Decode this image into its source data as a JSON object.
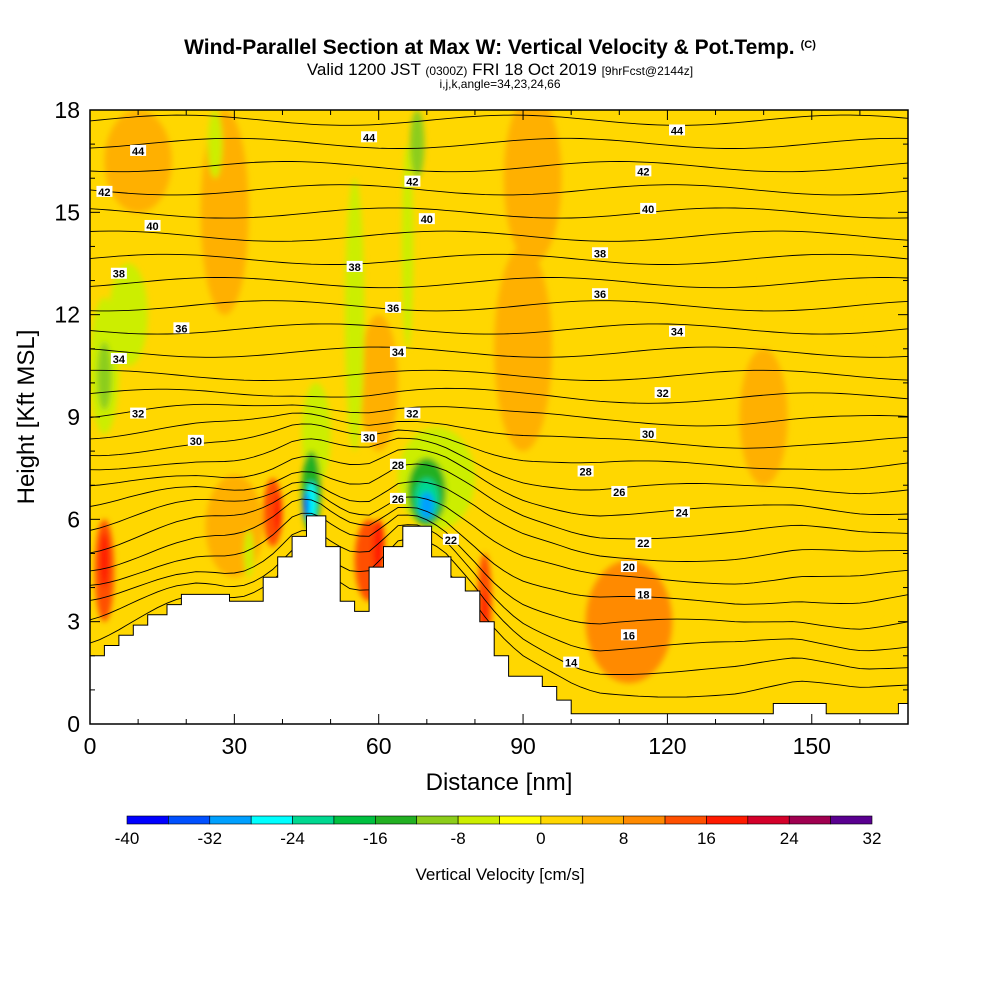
{
  "title": {
    "main": "Wind-Parallel Section at Max W: Vertical Velocity & Pot.Temp.",
    "copyright": "(C)",
    "valid_prefix": "Valid 1200 JST",
    "valid_utc": "(0300Z)",
    "valid_date": "FRI 18 Oct 2019",
    "forecast": "[9hrFcst@2144z]",
    "indices": "i,j,k,angle=34,23,24,66"
  },
  "chart_data": {
    "type": "heatmap",
    "xlabel": "Distance [nm]",
    "ylabel": "Height [Kft MSL]",
    "xlim": [
      0,
      170
    ],
    "ylim": [
      0,
      18
    ],
    "x_ticks": [
      "0",
      "30",
      "60",
      "90",
      "120",
      "150"
    ],
    "x_tick_values": [
      0,
      30,
      60,
      90,
      120,
      150
    ],
    "y_ticks": [
      "0",
      "3",
      "6",
      "9",
      "12",
      "15",
      "18"
    ],
    "y_tick_values": [
      0,
      3,
      6,
      9,
      12,
      15,
      18
    ],
    "terrain": [
      [
        0,
        2
      ],
      [
        3,
        2
      ],
      [
        3,
        2.3
      ],
      [
        6,
        2.3
      ],
      [
        6,
        2.6
      ],
      [
        9,
        2.6
      ],
      [
        9,
        2.9
      ],
      [
        12,
        2.9
      ],
      [
        12,
        3.2
      ],
      [
        16,
        3.2
      ],
      [
        16,
        3.5
      ],
      [
        19,
        3.5
      ],
      [
        19,
        3.8
      ],
      [
        29,
        3.8
      ],
      [
        29,
        3.6
      ],
      [
        36,
        3.6
      ],
      [
        36,
        4.3
      ],
      [
        39,
        4.3
      ],
      [
        39,
        4.9
      ],
      [
        42,
        4.9
      ],
      [
        42,
        5.5
      ],
      [
        45,
        5.5
      ],
      [
        45,
        6.1
      ],
      [
        49,
        6.1
      ],
      [
        49,
        5.2
      ],
      [
        52,
        5.2
      ],
      [
        52,
        3.6
      ],
      [
        55,
        3.6
      ],
      [
        55,
        3.3
      ],
      [
        58,
        3.3
      ],
      [
        58,
        4.6
      ],
      [
        61,
        4.6
      ],
      [
        61,
        5.2
      ],
      [
        65,
        5.2
      ],
      [
        65,
        5.8
      ],
      [
        71,
        5.8
      ],
      [
        71,
        4.9
      ],
      [
        75,
        4.9
      ],
      [
        75,
        4.3
      ],
      [
        78,
        4.3
      ],
      [
        78,
        3.9
      ],
      [
        81,
        3.9
      ],
      [
        81,
        3.0
      ],
      [
        84,
        3.0
      ],
      [
        84,
        2.0
      ],
      [
        87,
        2.0
      ],
      [
        87,
        1.4
      ],
      [
        94,
        1.4
      ],
      [
        94,
        1.1
      ],
      [
        97,
        1.1
      ],
      [
        97,
        0.7
      ],
      [
        100,
        0.7
      ],
      [
        100,
        0.3
      ],
      [
        142,
        0.3
      ],
      [
        142,
        0.6
      ],
      [
        153,
        0.6
      ],
      [
        153,
        0.3
      ],
      [
        168,
        0.3
      ],
      [
        168,
        0.6
      ],
      [
        170,
        0.6
      ]
    ],
    "contour_labels": [
      {
        "text": "44",
        "x": 10,
        "y": 16.8
      },
      {
        "text": "44",
        "x": 58,
        "y": 17.2
      },
      {
        "text": "44",
        "x": 122,
        "y": 17.4
      },
      {
        "text": "42",
        "x": 3,
        "y": 15.6
      },
      {
        "text": "42",
        "x": 67,
        "y": 15.9
      },
      {
        "text": "42",
        "x": 115,
        "y": 16.2
      },
      {
        "text": "40",
        "x": 13,
        "y": 14.6
      },
      {
        "text": "40",
        "x": 70,
        "y": 14.8
      },
      {
        "text": "40",
        "x": 116,
        "y": 15.1
      },
      {
        "text": "38",
        "x": 6,
        "y": 13.2
      },
      {
        "text": "38",
        "x": 55,
        "y": 13.4
      },
      {
        "text": "38",
        "x": 106,
        "y": 13.8
      },
      {
        "text": "36",
        "x": 19,
        "y": 11.6
      },
      {
        "text": "36",
        "x": 63,
        "y": 12.2
      },
      {
        "text": "36",
        "x": 106,
        "y": 12.6
      },
      {
        "text": "34",
        "x": 6,
        "y": 10.7
      },
      {
        "text": "34",
        "x": 64,
        "y": 10.9
      },
      {
        "text": "34",
        "x": 122,
        "y": 11.5
      },
      {
        "text": "32",
        "x": 10,
        "y": 9.1
      },
      {
        "text": "32",
        "x": 67,
        "y": 9.1
      },
      {
        "text": "32",
        "x": 119,
        "y": 9.7
      },
      {
        "text": "30",
        "x": 22,
        "y": 8.3
      },
      {
        "text": "30",
        "x": 58,
        "y": 8.4
      },
      {
        "text": "30",
        "x": 116,
        "y": 8.5
      },
      {
        "text": "28",
        "x": 64,
        "y": 7.6
      },
      {
        "text": "28",
        "x": 103,
        "y": 7.4
      },
      {
        "text": "26",
        "x": 64,
        "y": 6.6
      },
      {
        "text": "26",
        "x": 110,
        "y": 6.8
      },
      {
        "text": "24",
        "x": 123,
        "y": 6.2
      },
      {
        "text": "22",
        "x": 75,
        "y": 5.4
      },
      {
        "text": "22",
        "x": 115,
        "y": 5.3
      },
      {
        "text": "20",
        "x": 112,
        "y": 4.6
      },
      {
        "text": "18",
        "x": 115,
        "y": 3.8
      },
      {
        "text": "16",
        "x": 112,
        "y": 2.6
      },
      {
        "text": "14",
        "x": 100,
        "y": 1.8
      }
    ],
    "colorbar": {
      "label": "Vertical Velocity [cm/s]",
      "tick_labels": [
        "-40",
        "-32",
        "-24",
        "-16",
        "-8",
        "0",
        "8",
        "16",
        "24",
        "32"
      ],
      "tick_values": [
        -40,
        -32,
        -24,
        -16,
        -8,
        0,
        8,
        16,
        24,
        32
      ],
      "bins": [
        {
          "from": -40,
          "to": -36,
          "color": "#0000ff"
        },
        {
          "from": -36,
          "to": -32,
          "color": "#0050ff"
        },
        {
          "from": -32,
          "to": -28,
          "color": "#00a0ff"
        },
        {
          "from": -28,
          "to": -24,
          "color": "#00ffff"
        },
        {
          "from": -24,
          "to": -20,
          "color": "#00d890"
        },
        {
          "from": -20,
          "to": -16,
          "color": "#00c040"
        },
        {
          "from": -16,
          "to": -12,
          "color": "#22b022"
        },
        {
          "from": -12,
          "to": -8,
          "color": "#8ccd1a"
        },
        {
          "from": -8,
          "to": -4,
          "color": "#ccee00"
        },
        {
          "from": -4,
          "to": 0,
          "color": "#ffff00"
        },
        {
          "from": 0,
          "to": 4,
          "color": "#ffd700"
        },
        {
          "from": 4,
          "to": 8,
          "color": "#ffb000"
        },
        {
          "from": 8,
          "to": 12,
          "color": "#ff8a00"
        },
        {
          "from": 12,
          "to": 16,
          "color": "#ff5000"
        },
        {
          "from": 16,
          "to": 20,
          "color": "#ff1a00"
        },
        {
          "from": 20,
          "to": 24,
          "color": "#d4002a"
        },
        {
          "from": 24,
          "to": 28,
          "color": "#a00050"
        },
        {
          "from": 28,
          "to": 32,
          "color": "#5a0090"
        }
      ]
    },
    "velocity_regions": [
      {
        "x": 10,
        "y": 16.5,
        "rx": 7,
        "ry": 1.5,
        "value": 6
      },
      {
        "x": 28,
        "y": 15,
        "rx": 5,
        "ry": 3,
        "value": 4
      },
      {
        "x": 92,
        "y": 16,
        "rx": 6,
        "ry": 2.5,
        "value": 5
      },
      {
        "x": 150,
        "y": 13,
        "rx": 10,
        "ry": 3,
        "value": 3
      },
      {
        "x": 140,
        "y": 9,
        "rx": 5,
        "ry": 2,
        "value": 6
      },
      {
        "x": 90,
        "y": 11,
        "rx": 6,
        "ry": 3,
        "value": 4
      },
      {
        "x": 112,
        "y": 3,
        "rx": 9,
        "ry": 1.8,
        "value": 8
      },
      {
        "x": 160,
        "y": 7,
        "rx": 10,
        "ry": 4,
        "value": 3
      },
      {
        "x": 60,
        "y": 10,
        "rx": 4,
        "ry": 2,
        "value": 4
      },
      {
        "x": 30,
        "y": 5.8,
        "rx": 6,
        "ry": 1.5,
        "value": 6
      },
      {
        "x": 3,
        "y": 4.5,
        "rx": 2,
        "ry": 1.5,
        "value": 12
      },
      {
        "x": 3,
        "y": 4.8,
        "rx": 1,
        "ry": 0.8,
        "value": 16
      },
      {
        "x": 38,
        "y": 6.2,
        "rx": 2,
        "ry": 1,
        "value": 12
      },
      {
        "x": 39,
        "y": 6.2,
        "rx": 0.8,
        "ry": 0.6,
        "value": 16
      },
      {
        "x": 58,
        "y": 4.8,
        "rx": 3,
        "ry": 1.2,
        "value": 12
      },
      {
        "x": 60,
        "y": 5.2,
        "rx": 1.2,
        "ry": 0.8,
        "value": 18
      },
      {
        "x": 82,
        "y": 3.5,
        "rx": 1.5,
        "ry": 1.5,
        "value": 14
      },
      {
        "x": 82,
        "y": 3.3,
        "rx": 0.6,
        "ry": 0.6,
        "value": 18
      },
      {
        "x": 3,
        "y": 10.5,
        "rx": 3,
        "ry": 2,
        "value": -8
      },
      {
        "x": 3,
        "y": 10.2,
        "rx": 1.5,
        "ry": 1,
        "value": -12
      },
      {
        "x": 8,
        "y": 12,
        "rx": 4,
        "ry": 1.5,
        "value": -6
      },
      {
        "x": 26,
        "y": 17,
        "rx": 1.5,
        "ry": 1,
        "value": -6
      },
      {
        "x": 55,
        "y": 12,
        "rx": 2,
        "ry": 4,
        "value": -6
      },
      {
        "x": 68,
        "y": 17,
        "rx": 1.5,
        "ry": 1,
        "value": -12
      },
      {
        "x": 66,
        "y": 14,
        "rx": 1.2,
        "ry": 3,
        "value": -6
      },
      {
        "x": 47,
        "y": 8.5,
        "rx": 3,
        "ry": 1.5,
        "value": -6
      },
      {
        "x": 46,
        "y": 6.8,
        "rx": 2,
        "ry": 1.2,
        "value": -14
      },
      {
        "x": 46,
        "y": 6.5,
        "rx": 1,
        "ry": 0.6,
        "value": -28
      },
      {
        "x": 45,
        "y": 6.4,
        "rx": 0.5,
        "ry": 0.4,
        "value": -38
      },
      {
        "x": 72,
        "y": 7.2,
        "rx": 8,
        "ry": 1.5,
        "value": -6
      },
      {
        "x": 70,
        "y": 6.8,
        "rx": 4,
        "ry": 1,
        "value": -14
      },
      {
        "x": 70,
        "y": 6.6,
        "rx": 2.5,
        "ry": 0.6,
        "value": -22
      },
      {
        "x": 70,
        "y": 6.4,
        "rx": 1.5,
        "ry": 0.4,
        "value": -30
      },
      {
        "x": 33,
        "y": 5,
        "rx": 1,
        "ry": 0.7,
        "value": -6
      }
    ]
  }
}
